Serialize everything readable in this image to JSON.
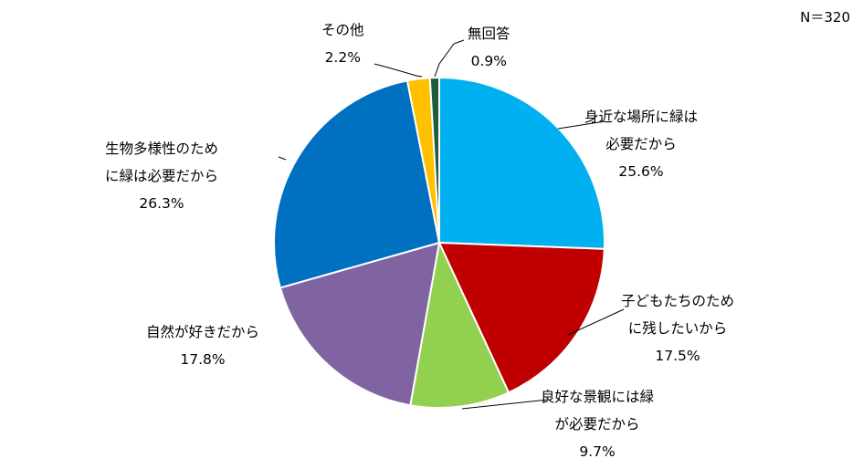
{
  "note": "N＝320",
  "chart_data": {
    "type": "pie",
    "start_angle_deg": 0,
    "direction": "clockwise",
    "slices": [
      {
        "label_lines": [
          "身近な場所に緑は",
          "必要だから"
        ],
        "value": 25.6,
        "value_label": "25.6%",
        "color": "#00B0F0"
      },
      {
        "label_lines": [
          "子どもたちのため",
          "に残したいから"
        ],
        "value": 17.5,
        "value_label": "17.5%",
        "color": "#C00000"
      },
      {
        "label_lines": [
          "良好な景観には緑",
          "が必要だから"
        ],
        "value": 9.7,
        "value_label": "9.7%",
        "color": "#92D050"
      },
      {
        "label_lines": [
          "自然が好きだから"
        ],
        "value": 17.8,
        "value_label": "17.8%",
        "color": "#8064A2"
      },
      {
        "label_lines": [
          "生物多様性のため",
          "に緑は必要だから"
        ],
        "value": 26.3,
        "value_label": "26.3%",
        "color": "#0070C0"
      },
      {
        "label_lines": [
          "その他"
        ],
        "value": 2.2,
        "value_label": "2.2%",
        "color": "#FFC000"
      },
      {
        "label_lines": [
          "無回答"
        ],
        "value": 0.9,
        "value_label": "0.9%",
        "color": "#1F5C3A"
      }
    ]
  }
}
